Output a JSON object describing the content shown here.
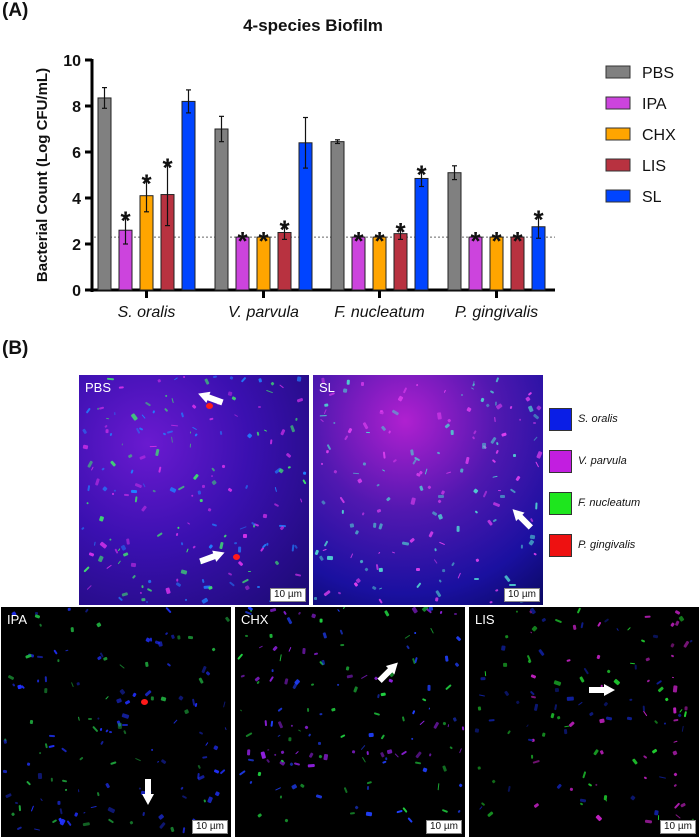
{
  "panels": {
    "a_label": "(A)",
    "b_label": "(B)"
  },
  "chart_data": {
    "type": "bar",
    "title": "4-species Biofilm",
    "xlabel": "",
    "ylabel": "Bacterial Count (Log CFU/mL)",
    "ylim": [
      0,
      10
    ],
    "yticks": [
      0,
      2,
      4,
      6,
      8,
      10
    ],
    "categories": [
      "S. oralis",
      "V. parvula",
      "F. nucleatum",
      "P. gingivalis"
    ],
    "detection_limit": 2.3,
    "legend_position": "right",
    "grid": false,
    "series": [
      {
        "name": "PBS",
        "color": "#808080",
        "values": [
          8.35,
          7.0,
          6.45,
          5.1
        ],
        "errors": [
          0.45,
          0.55,
          0.08,
          0.3
        ],
        "significant": [
          false,
          false,
          false,
          false
        ]
      },
      {
        "name": "IPA",
        "color": "#cc44dd",
        "values": [
          2.6,
          2.3,
          2.3,
          2.3
        ],
        "errors": [
          0.6,
          0,
          0,
          0
        ],
        "significant": [
          true,
          true,
          true,
          true
        ]
      },
      {
        "name": "CHX",
        "color": "#ffa500",
        "values": [
          4.1,
          2.3,
          2.3,
          2.3
        ],
        "errors": [
          0.7,
          0,
          0,
          0
        ],
        "significant": [
          true,
          true,
          true,
          true
        ]
      },
      {
        "name": "LIS",
        "color": "#b83240",
        "values": [
          4.15,
          2.5,
          2.45,
          2.3
        ],
        "errors": [
          1.35,
          0.3,
          0.25,
          0
        ],
        "significant": [
          true,
          true,
          true,
          true
        ]
      },
      {
        "name": "SL",
        "color": "#0044ff",
        "values": [
          8.2,
          6.4,
          4.85,
          2.75
        ],
        "errors": [
          0.5,
          1.1,
          0.35,
          0.5
        ],
        "significant": [
          false,
          false,
          true,
          true
        ]
      }
    ],
    "significance_marker": "*"
  },
  "microscopy": {
    "legend": [
      {
        "label": "S. oralis",
        "color": "#0a1ee6"
      },
      {
        "label": "V. parvula",
        "color": "#c21ee0"
      },
      {
        "label": "F. nucleatum",
        "color": "#1ee61e"
      },
      {
        "label": "P. gingivalis",
        "color": "#ee1111"
      }
    ],
    "images": [
      {
        "label": "PBS",
        "scale": "10 µm"
      },
      {
        "label": "SL",
        "scale": "10 µm"
      },
      {
        "label": "IPA",
        "scale": "10 µm"
      },
      {
        "label": "CHX",
        "scale": "10 µm"
      },
      {
        "label": "LIS",
        "scale": "10 µm"
      }
    ]
  }
}
